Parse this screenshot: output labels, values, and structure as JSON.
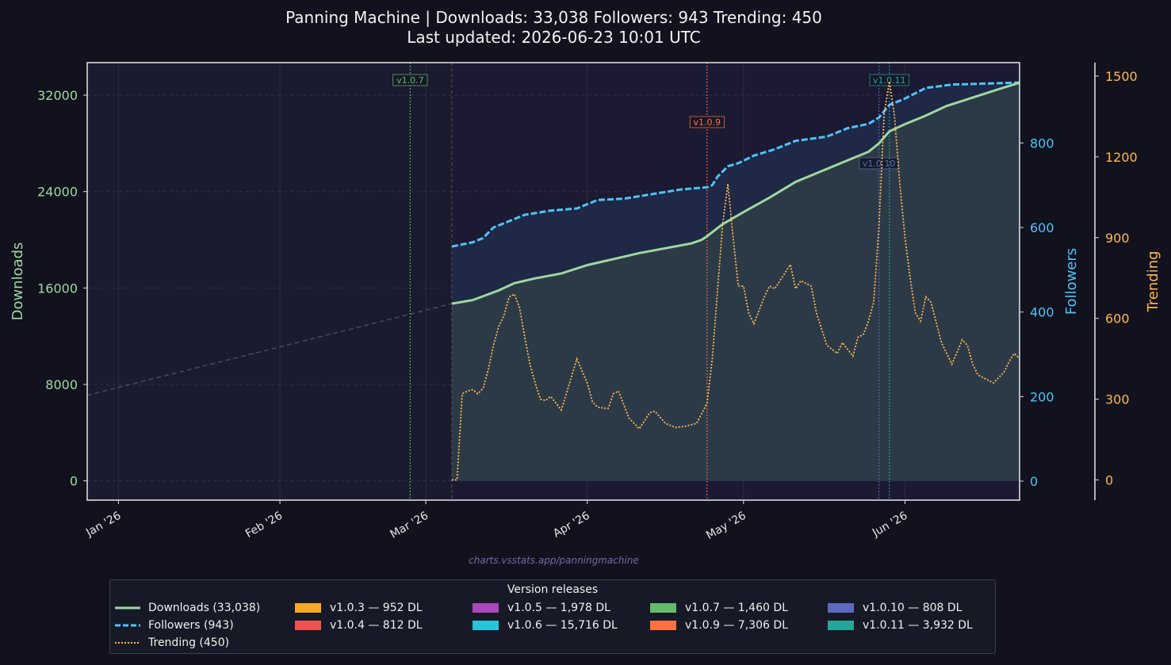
{
  "header": {
    "title": "Panning Machine  |  Downloads: 33,038   Followers: 943   Trending: 450",
    "subtitle": "Last updated: 2026-06-23 10:01 UTC"
  },
  "watermark": "charts.vsstats.app/panningmachine",
  "colors": {
    "background": "#12121f",
    "plot_bg_pre": "#1a1b2e",
    "plot_bg": "#1b1a32",
    "downloads": "#9ed89e",
    "followers": "#4fc3f7",
    "trending": "#ffb74d",
    "projection": "#4a4a56"
  },
  "chart_data": {
    "type": "line",
    "x_type": "date",
    "xlim": [
      "2025-12-26",
      "2026-06-23"
    ],
    "x_ticks": [
      {
        "date": "2026-01-01",
        "label": "Jan '26"
      },
      {
        "date": "2026-02-01",
        "label": "Feb '26"
      },
      {
        "date": "2026-03-01",
        "label": "Mar '26"
      },
      {
        "date": "2026-04-01",
        "label": "Apr '26"
      },
      {
        "date": "2026-05-01",
        "label": "May '26"
      },
      {
        "date": "2026-06-01",
        "label": "Jun '26"
      }
    ],
    "axes": {
      "downloads": {
        "label": "Downloads",
        "ylim": [
          -1600,
          34700
        ],
        "ticks": [
          0,
          8000,
          16000,
          24000,
          32000
        ]
      },
      "followers": {
        "label": "Followers",
        "ylim": [
          -45,
          990
        ],
        "ticks": [
          0,
          200,
          400,
          600,
          800
        ]
      },
      "trending": {
        "label": "Trending",
        "ylim": [
          -75,
          1550
        ],
        "ticks": [
          0,
          300,
          600,
          900,
          1200,
          1500
        ]
      }
    },
    "grid": true,
    "legend_location": "bottom-center",
    "series": [
      {
        "name": "Downloads (33,038)",
        "axis": "downloads",
        "style": "solid",
        "fill": true,
        "points": [
          [
            "2026-03-06",
            14700
          ],
          [
            "2026-03-10",
            15000
          ],
          [
            "2026-03-15",
            15800
          ],
          [
            "2026-03-18",
            16400
          ],
          [
            "2026-03-22",
            16800
          ],
          [
            "2026-03-27",
            17200
          ],
          [
            "2026-04-01",
            17900
          ],
          [
            "2026-04-06",
            18400
          ],
          [
            "2026-04-11",
            18900
          ],
          [
            "2026-04-16",
            19300
          ],
          [
            "2026-04-21",
            19700
          ],
          [
            "2026-04-23",
            20000
          ],
          [
            "2026-04-24",
            20300
          ],
          [
            "2026-04-27",
            21300
          ],
          [
            "2026-05-01",
            22300
          ],
          [
            "2026-05-06",
            23500
          ],
          [
            "2026-05-11",
            24800
          ],
          [
            "2026-05-16",
            25700
          ],
          [
            "2026-05-21",
            26600
          ],
          [
            "2026-05-25",
            27300
          ],
          [
            "2026-05-27",
            28000
          ],
          [
            "2026-05-29",
            29000
          ],
          [
            "2026-06-01",
            29600
          ],
          [
            "2026-06-05",
            30300
          ],
          [
            "2026-06-09",
            31100
          ],
          [
            "2026-06-14",
            31800
          ],
          [
            "2026-06-19",
            32500
          ],
          [
            "2026-06-23",
            33038
          ]
        ]
      },
      {
        "name": "Followers (943)",
        "axis": "followers",
        "style": "dashed",
        "fill": true,
        "points": [
          [
            "2026-03-06",
            555
          ],
          [
            "2026-03-10",
            565
          ],
          [
            "2026-03-12",
            575
          ],
          [
            "2026-03-14",
            600
          ],
          [
            "2026-03-17",
            615
          ],
          [
            "2026-03-20",
            630
          ],
          [
            "2026-03-25",
            640
          ],
          [
            "2026-03-30",
            645
          ],
          [
            "2026-04-03",
            665
          ],
          [
            "2026-04-08",
            668
          ],
          [
            "2026-04-13",
            678
          ],
          [
            "2026-04-19",
            690
          ],
          [
            "2026-04-24",
            695
          ],
          [
            "2026-04-25",
            700
          ],
          [
            "2026-04-26",
            720
          ],
          [
            "2026-04-28",
            745
          ],
          [
            "2026-04-30",
            752
          ],
          [
            "2026-05-03",
            770
          ],
          [
            "2026-05-07",
            785
          ],
          [
            "2026-05-11",
            805
          ],
          [
            "2026-05-17",
            815
          ],
          [
            "2026-05-21",
            835
          ],
          [
            "2026-05-25",
            845
          ],
          [
            "2026-05-27",
            860
          ],
          [
            "2026-05-29",
            890
          ],
          [
            "2026-06-01",
            905
          ],
          [
            "2026-06-05",
            930
          ],
          [
            "2026-06-10",
            938
          ],
          [
            "2026-06-15",
            940
          ],
          [
            "2026-06-23",
            943
          ]
        ]
      },
      {
        "name": "Trending (450)",
        "axis": "trending",
        "style": "dotted",
        "fill": false,
        "points": [
          [
            "2026-03-06",
            0
          ],
          [
            "2026-03-07",
            0
          ],
          [
            "2026-03-08",
            320
          ],
          [
            "2026-03-09",
            330
          ],
          [
            "2026-03-10",
            335
          ],
          [
            "2026-03-11",
            320
          ],
          [
            "2026-03-12",
            340
          ],
          [
            "2026-03-13",
            410
          ],
          [
            "2026-03-14",
            500
          ],
          [
            "2026-03-15",
            570
          ],
          [
            "2026-03-16",
            610
          ],
          [
            "2026-03-17",
            680
          ],
          [
            "2026-03-18",
            690
          ],
          [
            "2026-03-19",
            640
          ],
          [
            "2026-03-20",
            530
          ],
          [
            "2026-03-21",
            430
          ],
          [
            "2026-03-22",
            360
          ],
          [
            "2026-03-23",
            300
          ],
          [
            "2026-03-24",
            295
          ],
          [
            "2026-03-25",
            310
          ],
          [
            "2026-03-27",
            260
          ],
          [
            "2026-03-28",
            320
          ],
          [
            "2026-03-30",
            450
          ],
          [
            "2026-04-01",
            360
          ],
          [
            "2026-04-02",
            290
          ],
          [
            "2026-04-03",
            270
          ],
          [
            "2026-04-05",
            265
          ],
          [
            "2026-04-06",
            320
          ],
          [
            "2026-04-07",
            330
          ],
          [
            "2026-04-09",
            230
          ],
          [
            "2026-04-10",
            210
          ],
          [
            "2026-04-11",
            190
          ],
          [
            "2026-04-13",
            250
          ],
          [
            "2026-04-14",
            255
          ],
          [
            "2026-04-16",
            210
          ],
          [
            "2026-04-18",
            195
          ],
          [
            "2026-04-20",
            200
          ],
          [
            "2026-04-22",
            210
          ],
          [
            "2026-04-24",
            285
          ],
          [
            "2026-04-25",
            450
          ],
          [
            "2026-04-26",
            700
          ],
          [
            "2026-04-27",
            950
          ],
          [
            "2026-04-28",
            1100
          ],
          [
            "2026-04-29",
            900
          ],
          [
            "2026-04-30",
            720
          ],
          [
            "2026-05-01",
            720
          ],
          [
            "2026-05-02",
            620
          ],
          [
            "2026-05-03",
            580
          ],
          [
            "2026-05-05",
            680
          ],
          [
            "2026-05-06",
            720
          ],
          [
            "2026-05-07",
            710
          ],
          [
            "2026-05-08",
            740
          ],
          [
            "2026-05-10",
            800
          ],
          [
            "2026-05-11",
            710
          ],
          [
            "2026-05-12",
            740
          ],
          [
            "2026-05-14",
            720
          ],
          [
            "2026-05-15",
            620
          ],
          [
            "2026-05-17",
            500
          ],
          [
            "2026-05-19",
            470
          ],
          [
            "2026-05-20",
            510
          ],
          [
            "2026-05-22",
            460
          ],
          [
            "2026-05-23",
            530
          ],
          [
            "2026-05-24",
            540
          ],
          [
            "2026-05-25",
            590
          ],
          [
            "2026-05-26",
            660
          ],
          [
            "2026-05-27",
            940
          ],
          [
            "2026-05-28",
            1360
          ],
          [
            "2026-05-29",
            1480
          ],
          [
            "2026-05-30",
            1350
          ],
          [
            "2026-05-31",
            1100
          ],
          [
            "2026-06-01",
            900
          ],
          [
            "2026-06-02",
            750
          ],
          [
            "2026-06-03",
            620
          ],
          [
            "2026-06-04",
            590
          ],
          [
            "2026-06-05",
            680
          ],
          [
            "2026-06-06",
            660
          ],
          [
            "2026-06-08",
            510
          ],
          [
            "2026-06-10",
            430
          ],
          [
            "2026-06-12",
            520
          ],
          [
            "2026-06-13",
            500
          ],
          [
            "2026-06-14",
            430
          ],
          [
            "2026-06-15",
            390
          ],
          [
            "2026-06-16",
            380
          ],
          [
            "2026-06-18",
            360
          ],
          [
            "2026-06-20",
            400
          ],
          [
            "2026-06-21",
            440
          ],
          [
            "2026-06-22",
            470
          ],
          [
            "2026-06-23",
            450
          ]
        ]
      }
    ],
    "projection": {
      "axis": "downloads",
      "style": "dashed",
      "points": [
        [
          "2025-12-26",
          7100
        ],
        [
          "2026-03-06",
          14700
        ]
      ]
    },
    "shaded_span": {
      "from": "2025-12-26",
      "to": "2026-03-06"
    },
    "releases": [
      {
        "version": "v1.0.3",
        "downloads_label": "952 DL",
        "color": "#f9a825"
      },
      {
        "version": "v1.0.4",
        "downloads_label": "812 DL",
        "color": "#ef5350"
      },
      {
        "version": "v1.0.5",
        "downloads_label": "1,978 DL",
        "color": "#ab47bc"
      },
      {
        "version": "v1.0.6",
        "downloads_label": "15,716 DL",
        "color": "#26c6da"
      },
      {
        "version": "v1.0.7",
        "downloads_label": "1,460 DL",
        "color": "#66bb6a",
        "date": "2026-02-26",
        "marker_label": "v1.0.7"
      },
      {
        "version": "v1.0.9",
        "downloads_label": "7,306 DL",
        "color": "#ff7043",
        "date": "2026-04-24",
        "marker_label": "v1.0.9"
      },
      {
        "version": "v1.0.10",
        "downloads_label": "808 DL",
        "color": "#5c6bc0",
        "date": "2026-05-27",
        "marker_label": "v1.0.10"
      },
      {
        "version": "v1.0.11",
        "downloads_label": "3,932 DL",
        "color": "#26a69a",
        "date": "2026-05-29",
        "marker_label": "v1.0.11"
      }
    ],
    "legend_title": "Version releases",
    "release_legend_separator": "  —  "
  }
}
